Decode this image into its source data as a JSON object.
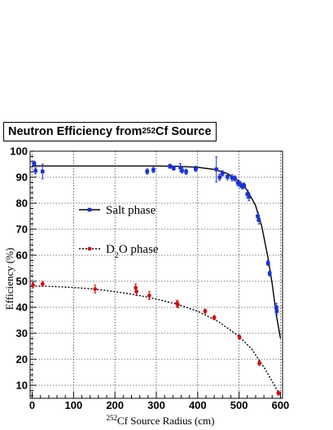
{
  "chart_data": {
    "type": "scatter",
    "title": {
      "prefix": "Neutron Efficiency from ",
      "sup": "252",
      "suffix": "Cf Source"
    },
    "xlabel": {
      "sup": "252",
      "text": "Cf Source Radius (cm)"
    },
    "ylabel": "Efficiency (%)",
    "xlim": [
      -5,
      605
    ],
    "ylim": [
      5,
      100
    ],
    "xticks": [
      0,
      100,
      200,
      300,
      400,
      500,
      600
    ],
    "yticks": [
      10,
      20,
      30,
      40,
      50,
      60,
      70,
      80,
      90,
      100
    ],
    "grid": true,
    "legend_placement": "middle-left",
    "series": [
      {
        "name": "Salt phase",
        "name_parts": [
          "Salt phase"
        ],
        "marker": "square",
        "line_style": "solid",
        "color": "#1a33cc",
        "points": [
          {
            "x": 5,
            "y": 95.2,
            "err": 1.0
          },
          {
            "x": 8,
            "y": 92.5,
            "err": 1.2
          },
          {
            "x": 25,
            "y": 92.2,
            "err": 2.8
          },
          {
            "x": 278,
            "y": 92.2,
            "err": 1.0
          },
          {
            "x": 293,
            "y": 92.8,
            "err": 1.0
          },
          {
            "x": 333,
            "y": 94.2,
            "err": 0.8
          },
          {
            "x": 342,
            "y": 93.5,
            "err": 0.8
          },
          {
            "x": 358,
            "y": 93.7,
            "err": 1.5
          },
          {
            "x": 362,
            "y": 92.6,
            "err": 1.0
          },
          {
            "x": 372,
            "y": 92.1,
            "err": 1.0
          },
          {
            "x": 395,
            "y": 93.2,
            "err": 1.0
          },
          {
            "x": 445,
            "y": 93.0,
            "err": 4.8
          },
          {
            "x": 453,
            "y": 90.0,
            "err": 1.2
          },
          {
            "x": 460,
            "y": 91.5,
            "err": 1.0
          },
          {
            "x": 472,
            "y": 90.2,
            "err": 1.2
          },
          {
            "x": 483,
            "y": 89.8,
            "err": 1.2
          },
          {
            "x": 490,
            "y": 89.5,
            "err": 1.0
          },
          {
            "x": 497,
            "y": 87.8,
            "err": 1.2
          },
          {
            "x": 503,
            "y": 87.2,
            "err": 1.2
          },
          {
            "x": 508,
            "y": 86.5,
            "err": 1.0
          },
          {
            "x": 512,
            "y": 86.8,
            "err": 1.0
          },
          {
            "x": 520,
            "y": 83.5,
            "err": 1.5
          },
          {
            "x": 524,
            "y": 82.5,
            "err": 1.5
          },
          {
            "x": 545,
            "y": 75.0,
            "err": 1.5
          },
          {
            "x": 548,
            "y": 73.5,
            "err": 1.5
          },
          {
            "x": 570,
            "y": 57.0,
            "err": 1.0
          },
          {
            "x": 574,
            "y": 53.0,
            "err": 1.0
          },
          {
            "x": 590,
            "y": 40.0,
            "err": 1.5
          },
          {
            "x": 591,
            "y": 38.5,
            "err": 1.5
          }
        ],
        "fit_line": [
          {
            "x": 0,
            "y": 94.3
          },
          {
            "x": 100,
            "y": 94.3
          },
          {
            "x": 200,
            "y": 94.3
          },
          {
            "x": 300,
            "y": 94.3
          },
          {
            "x": 350,
            "y": 94.2
          },
          {
            "x": 400,
            "y": 93.8
          },
          {
            "x": 440,
            "y": 93.0
          },
          {
            "x": 470,
            "y": 91.5
          },
          {
            "x": 500,
            "y": 88.5
          },
          {
            "x": 520,
            "y": 85.0
          },
          {
            "x": 540,
            "y": 79.0
          },
          {
            "x": 555,
            "y": 71.0
          },
          {
            "x": 570,
            "y": 59.0
          },
          {
            "x": 580,
            "y": 49.0
          },
          {
            "x": 590,
            "y": 37.0
          },
          {
            "x": 600,
            "y": 28.0
          }
        ]
      },
      {
        "name": "D2O phase",
        "name_parts": [
          "D",
          "2",
          "O phase"
        ],
        "marker": "circle",
        "line_style": "dotted",
        "color": "#cc1111",
        "points": [
          {
            "x": 2,
            "y": 48.5,
            "err": 1.0
          },
          {
            "x": 25,
            "y": 49.0,
            "err": 1.0
          },
          {
            "x": 152,
            "y": 47.0,
            "err": 1.5
          },
          {
            "x": 250,
            "y": 47.5,
            "err": 1.5
          },
          {
            "x": 252,
            "y": 46.0,
            "err": 1.5
          },
          {
            "x": 283,
            "y": 44.5,
            "err": 1.5
          },
          {
            "x": 350,
            "y": 41.5,
            "err": 1.2
          },
          {
            "x": 352,
            "y": 41.0,
            "err": 1.2
          },
          {
            "x": 418,
            "y": 38.5,
            "err": 0.8
          },
          {
            "x": 440,
            "y": 36.0,
            "err": 0.8
          },
          {
            "x": 501,
            "y": 28.5,
            "err": 0.8
          },
          {
            "x": 549,
            "y": 18.5,
            "err": 0.8
          },
          {
            "x": 595,
            "y": 7.0,
            "err": 0.8
          }
        ],
        "fit_line": [
          {
            "x": 0,
            "y": 48.2
          },
          {
            "x": 50,
            "y": 48.0
          },
          {
            "x": 100,
            "y": 47.6
          },
          {
            "x": 150,
            "y": 47.0
          },
          {
            "x": 200,
            "y": 46.0
          },
          {
            "x": 250,
            "y": 44.8
          },
          {
            "x": 300,
            "y": 43.2
          },
          {
            "x": 350,
            "y": 41.2
          },
          {
            "x": 400,
            "y": 38.5
          },
          {
            "x": 450,
            "y": 34.5
          },
          {
            "x": 500,
            "y": 28.8
          },
          {
            "x": 530,
            "y": 24.0
          },
          {
            "x": 560,
            "y": 17.0
          },
          {
            "x": 580,
            "y": 11.5
          },
          {
            "x": 598,
            "y": 6.5
          }
        ]
      }
    ]
  }
}
